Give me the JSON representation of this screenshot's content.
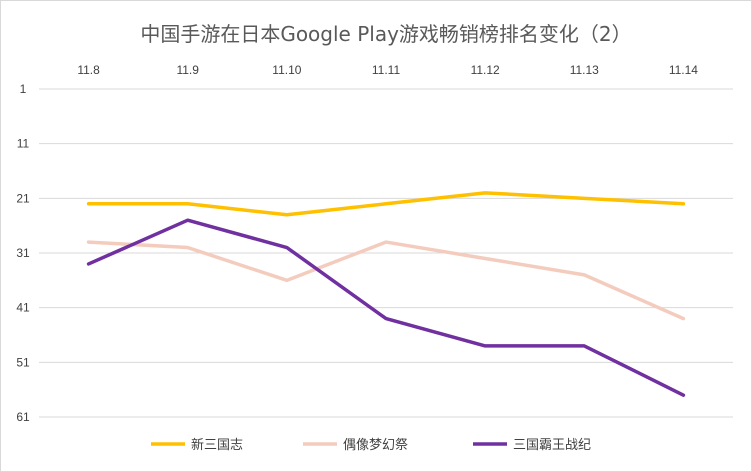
{
  "chart_data": {
    "type": "line",
    "title": "中国手游在日本Google Play游戏畅销榜排名变化（2）",
    "categories": [
      "11.8",
      "11.9",
      "11.10",
      "11.11",
      "11.12",
      "11.13",
      "11.14"
    ],
    "x_axis_position": "top",
    "y_axis": {
      "reversed": true,
      "range": [
        1,
        61
      ],
      "ticks": [
        "1",
        "11",
        "21",
        "31",
        "41",
        "51",
        "61"
      ],
      "tick_values": [
        1,
        11,
        21,
        31,
        41,
        51,
        61
      ]
    },
    "grid": true,
    "legend_position": "bottom",
    "series": [
      {
        "name": "新三国志",
        "color": "#FFC000",
        "values": [
          22,
          22,
          24,
          22,
          20,
          21,
          22
        ]
      },
      {
        "name": "偶像梦幻祭",
        "color": "#F4CCBE",
        "values": [
          29,
          30,
          36,
          29,
          32,
          35,
          43
        ]
      },
      {
        "name": "三国霸王战纪",
        "color": "#7030A0",
        "values": [
          33,
          25,
          30,
          43,
          48,
          48,
          57
        ]
      }
    ]
  }
}
